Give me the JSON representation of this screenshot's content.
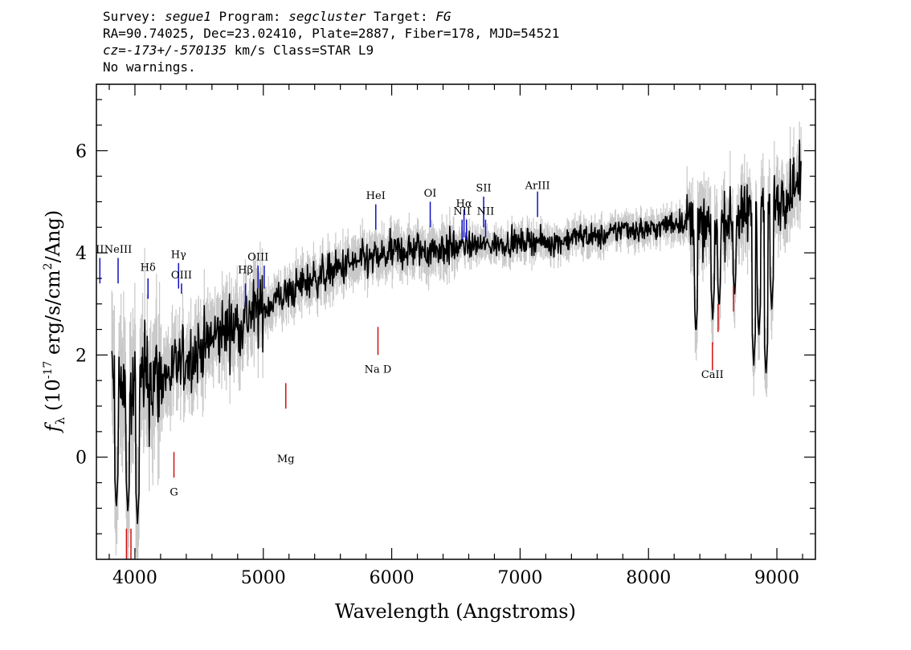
{
  "header": {
    "line1": {
      "survey_label": "Survey: ",
      "survey": "segue1",
      "program_label": " Program: ",
      "program": "segcluster",
      "target_label": " Target: ",
      "target": "FG"
    },
    "line2": "RA=90.74025, Dec=23.02410, Plate=2887, Fiber=178, MJD=54521",
    "line3": {
      "cz_label": "cz=",
      "cz": "-173+/-570135",
      "cz_unit": " km/s Class=STAR L9"
    },
    "line4": "No warnings."
  },
  "colors": {
    "flux": "#000000",
    "error": "#c8c8c8",
    "emission": "#1010c0",
    "absorption": "#d01010"
  },
  "chart_data": {
    "type": "line",
    "title": "",
    "xlabel": "Wavelength (Angstroms)",
    "ylabel_parts": {
      "pre": "f",
      "sub": "λ",
      "mid": " (10",
      "sup1": "-17",
      "mid2": " erg/s/cm",
      "sup2": "2",
      "post": "/Ang)"
    },
    "xlim": [
      3700,
      9300
    ],
    "ylim": [
      -2.0,
      7.3
    ],
    "xticks": [
      4000,
      5000,
      6000,
      7000,
      8000,
      9000
    ],
    "yticks": [
      0,
      2,
      4,
      6
    ],
    "continuum_points": [
      [
        3800,
        1.6
      ],
      [
        3900,
        1.2
      ],
      [
        4000,
        1.2
      ],
      [
        4100,
        1.5
      ],
      [
        4200,
        1.5
      ],
      [
        4300,
        1.7
      ],
      [
        4400,
        1.9
      ],
      [
        4500,
        2.1
      ],
      [
        4600,
        2.3
      ],
      [
        4700,
        2.5
      ],
      [
        4800,
        2.6
      ],
      [
        4900,
        2.8
      ],
      [
        5000,
        2.9
      ],
      [
        5100,
        3.1
      ],
      [
        5200,
        3.2
      ],
      [
        5300,
        3.4
      ],
      [
        5400,
        3.5
      ],
      [
        5500,
        3.6
      ],
      [
        5600,
        3.7
      ],
      [
        5700,
        3.8
      ],
      [
        5800,
        3.85
      ],
      [
        5900,
        3.9
      ],
      [
        6000,
        4.0
      ],
      [
        6100,
        4.05
      ],
      [
        6200,
        4.05
      ],
      [
        6300,
        4.05
      ],
      [
        6400,
        4.1
      ],
      [
        6500,
        4.1
      ],
      [
        6600,
        4.15
      ],
      [
        6700,
        4.15
      ],
      [
        6800,
        4.15
      ],
      [
        6900,
        4.2
      ],
      [
        7000,
        4.2
      ],
      [
        7100,
        4.25
      ],
      [
        7200,
        4.2
      ],
      [
        7300,
        4.2
      ],
      [
        7400,
        4.3
      ],
      [
        7500,
        4.35
      ],
      [
        7600,
        4.3
      ],
      [
        7700,
        4.35
      ],
      [
        7800,
        4.5
      ],
      [
        7900,
        4.45
      ],
      [
        8000,
        4.45
      ],
      [
        8100,
        4.5
      ],
      [
        8200,
        4.6
      ],
      [
        8300,
        4.6
      ],
      [
        8400,
        4.5
      ],
      [
        8500,
        4.45
      ],
      [
        8600,
        4.6
      ],
      [
        8700,
        4.65
      ],
      [
        8800,
        4.8
      ],
      [
        8900,
        5.0
      ],
      [
        9000,
        5.0
      ],
      [
        9100,
        5.2
      ],
      [
        9180,
        5.4
      ]
    ],
    "flux_dips": [
      [
        3855,
        -1.0
      ],
      [
        3945,
        -1.1
      ],
      [
        4020,
        -1.3
      ],
      [
        8370,
        2.4
      ],
      [
        8500,
        2.7
      ],
      [
        8550,
        2.9
      ],
      [
        8670,
        3.1
      ],
      [
        8820,
        1.8
      ],
      [
        8860,
        2.4
      ],
      [
        8915,
        1.6
      ],
      [
        8960,
        2.9
      ]
    ],
    "emission_lines": [
      {
        "label": "II",
        "x": 3727,
        "label_y": 4.0,
        "y1": 3.4,
        "y2": 3.9
      },
      {
        "label": "NeIII",
        "x": 3869,
        "label_y": 4.0,
        "y1": 3.4,
        "y2": 3.9
      },
      {
        "label": "Hδ",
        "x": 4102,
        "label_y": 3.65,
        "y1": 3.1,
        "y2": 3.5
      },
      {
        "label": "Hγ",
        "x": 4340,
        "label_y": 3.9,
        "y1": 3.3,
        "y2": 3.8
      },
      {
        "label": "OIII",
        "x": 4363,
        "label_y": 3.5,
        "y1": 3.2,
        "y2": 3.4
      },
      {
        "label": "Hβ",
        "x": 4861,
        "label_y": 3.6,
        "y1": 2.95,
        "y2": 3.4
      },
      {
        "label": "OIII",
        "x": 4959,
        "label_y": 3.85,
        "y1": 3.3,
        "y2": 3.75
      },
      {
        "label": "",
        "x": 5007,
        "label_y": 3.85,
        "y1": 3.3,
        "y2": 3.75
      },
      {
        "label": "HeI",
        "x": 5876,
        "label_y": 5.05,
        "y1": 4.45,
        "y2": 4.95
      },
      {
        "label": "OI",
        "x": 6300,
        "label_y": 5.1,
        "y1": 4.5,
        "y2": 5.0
      },
      {
        "label": "NII",
        "x": 6548,
        "label_y": 4.75,
        "y1": 4.25,
        "y2": 4.65
      },
      {
        "label": "Hα",
        "x": 6563,
        "label_y": 4.9,
        "y1": 4.3,
        "y2": 4.85
      },
      {
        "label": "",
        "x": 6583,
        "label_y": 4.75,
        "y1": 4.25,
        "y2": 4.65
      },
      {
        "label": "SII",
        "x": 6716,
        "label_y": 5.2,
        "y1": 4.5,
        "y2": 5.1
      },
      {
        "label": "NII",
        "x": 6731,
        "label_y": 4.75,
        "y1": 4.3,
        "y2": 4.65
      },
      {
        "label": "ArIII",
        "x": 7136,
        "label_y": 5.25,
        "y1": 4.7,
        "y2": 5.2
      }
    ],
    "absorption_lines": [
      {
        "label": "G",
        "x": 4304,
        "label_y": -0.75,
        "y1": -0.4,
        "y2": 0.1
      },
      {
        "label": "Mg",
        "x": 5175,
        "label_y": -0.1,
        "y1": 0.95,
        "y2": 1.45
      },
      {
        "label": "Na D",
        "x": 5893,
        "label_y": 1.65,
        "y1": 2.0,
        "y2": 2.55
      },
      {
        "label": "CaII",
        "x": 8498,
        "label_y": 1.55,
        "y1": 1.7,
        "y2": 2.25
      },
      {
        "label": "",
        "x": 8542,
        "label_y": 1.55,
        "y1": 2.45,
        "y2": 3.0
      },
      {
        "label": "",
        "x": 8662,
        "label_y": 1.55,
        "y1": 2.85,
        "y2": 3.35
      },
      {
        "label": "",
        "x": 3934,
        "label_y": -2.0,
        "y1": -2.0,
        "y2": -1.4
      },
      {
        "label": "",
        "x": 3969,
        "label_y": -2.0,
        "y1": -2.0,
        "y2": -1.4
      }
    ]
  }
}
